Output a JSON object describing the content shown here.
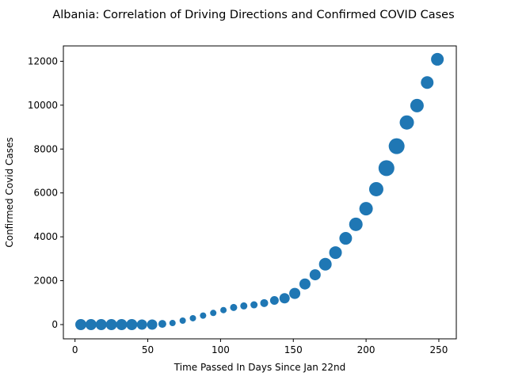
{
  "chart_data": {
    "type": "scatter",
    "title": "Albania: Correlation of Driving Directions and Confirmed COVID Cases",
    "xlabel": "Time Passed In Days Since Jan 22nd",
    "ylabel": "Confirmed Covid Cases",
    "xlim": [
      -8,
      262
    ],
    "ylim": [
      -650,
      12700
    ],
    "xticks": [
      0,
      50,
      100,
      150,
      200,
      250
    ],
    "yticks": [
      0,
      2000,
      4000,
      6000,
      8000,
      10000,
      12000
    ],
    "grid": false,
    "marker_color": "#1f77b4",
    "points": [
      {
        "x": 4,
        "y": 0,
        "size": 7
      },
      {
        "x": 11,
        "y": 0,
        "size": 7
      },
      {
        "x": 18,
        "y": 0,
        "size": 7
      },
      {
        "x": 25,
        "y": 0,
        "size": 7
      },
      {
        "x": 32,
        "y": 0,
        "size": 7
      },
      {
        "x": 39,
        "y": 0,
        "size": 7
      },
      {
        "x": 46,
        "y": 0,
        "size": 6.5
      },
      {
        "x": 53,
        "y": 0,
        "size": 6.5
      },
      {
        "x": 60,
        "y": 30,
        "size": 5
      },
      {
        "x": 67,
        "y": 70,
        "size": 4
      },
      {
        "x": 74,
        "y": 180,
        "size": 4
      },
      {
        "x": 81,
        "y": 290,
        "size": 4
      },
      {
        "x": 88,
        "y": 410,
        "size": 4
      },
      {
        "x": 95,
        "y": 530,
        "size": 4
      },
      {
        "x": 102,
        "y": 660,
        "size": 4
      },
      {
        "x": 109,
        "y": 780,
        "size": 4.5
      },
      {
        "x": 116,
        "y": 850,
        "size": 4.5
      },
      {
        "x": 123,
        "y": 900,
        "size": 4.5
      },
      {
        "x": 130,
        "y": 980,
        "size": 5
      },
      {
        "x": 137,
        "y": 1100,
        "size": 5.5
      },
      {
        "x": 144,
        "y": 1200,
        "size": 6.5
      },
      {
        "x": 151,
        "y": 1420,
        "size": 7
      },
      {
        "x": 158,
        "y": 1850,
        "size": 7
      },
      {
        "x": 165,
        "y": 2270,
        "size": 7
      },
      {
        "x": 172,
        "y": 2750,
        "size": 8
      },
      {
        "x": 179,
        "y": 3280,
        "size": 8
      },
      {
        "x": 186,
        "y": 3930,
        "size": 8
      },
      {
        "x": 193,
        "y": 4570,
        "size": 8.5
      },
      {
        "x": 200,
        "y": 5280,
        "size": 8.5
      },
      {
        "x": 207,
        "y": 6170,
        "size": 9
      },
      {
        "x": 214,
        "y": 7130,
        "size": 10
      },
      {
        "x": 221,
        "y": 8130,
        "size": 10
      },
      {
        "x": 228,
        "y": 9210,
        "size": 9
      },
      {
        "x": 235,
        "y": 9980,
        "size": 8.5
      },
      {
        "x": 242,
        "y": 11030,
        "size": 8
      },
      {
        "x": 249,
        "y": 12090,
        "size": 8
      }
    ]
  }
}
